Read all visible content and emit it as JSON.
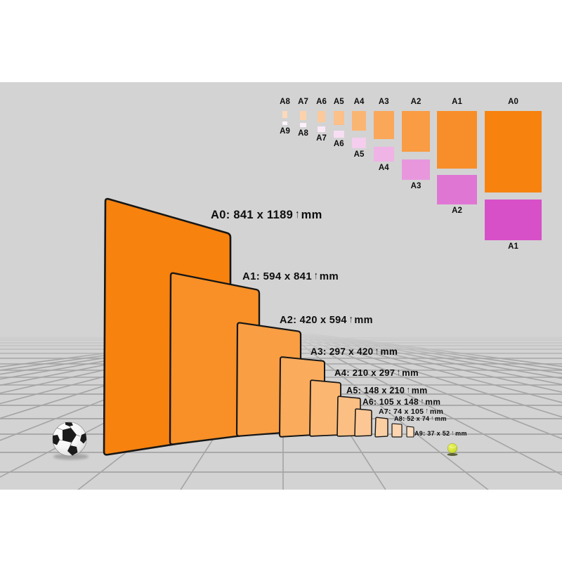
{
  "scene": {
    "frame_color": "#ffffff",
    "background_color": "#d3d3d3",
    "grid_color": "#a4a4a4",
    "text_color": "#0d0d0d"
  },
  "icons": {
    "up_arrow": "↑",
    "soccer_ball": "soccer-ball",
    "tennis_ball": "tennis-ball"
  },
  "main_sheets": [
    {
      "name": "A0",
      "label": "A0: 841 x 1189",
      "unit": "mm",
      "color": "#f7820e"
    },
    {
      "name": "A1",
      "label": "A1: 594 x 841",
      "unit": "mm",
      "color": "#f89027"
    },
    {
      "name": "A2",
      "label": "A2: 420 x 594",
      "unit": "mm",
      "color": "#f99e43"
    },
    {
      "name": "A3",
      "label": "A3: 297 x 420",
      "unit": "mm",
      "color": "#faab5b"
    },
    {
      "name": "A4",
      "label": "A4: 210 x 297",
      "unit": "mm",
      "color": "#fbb671"
    },
    {
      "name": "A5",
      "label": "A5: 148 x 210",
      "unit": "mm",
      "color": "#fbbf83"
    },
    {
      "name": "A6",
      "label": "A6: 105 x 148",
      "unit": "mm",
      "color": "#fcc794"
    },
    {
      "name": "A7",
      "label": "A7: 74 x 105",
      "unit": "mm",
      "color": "#fccfa3"
    },
    {
      "name": "A8",
      "label": "A8: 52 x 74",
      "unit": "mm",
      "color": "#fdd6b1"
    },
    {
      "name": "A9",
      "label": "A9: 37 x 52",
      "unit": "mm",
      "color": "#fdddbf"
    }
  ],
  "legend": {
    "columns": [
      {
        "portrait_label": "A8",
        "portrait_color": "#fddaba",
        "landscape_label": "A9",
        "landscape_color": "#fdf5fb"
      },
      {
        "portrait_label": "A7",
        "portrait_color": "#fdd2ab",
        "landscape_label": "A8",
        "landscape_color": "#fcf0fa"
      },
      {
        "portrait_label": "A6",
        "portrait_color": "#fcc99a",
        "landscape_label": "A7",
        "landscape_color": "#fae8f7"
      },
      {
        "portrait_label": "A5",
        "portrait_color": "#fcc089",
        "landscape_label": "A6",
        "landscape_color": "#f8def4"
      },
      {
        "portrait_label": "A4",
        "portrait_color": "#fbb573",
        "landscape_label": "A5",
        "landscape_color": "#f5cdee"
      },
      {
        "portrait_label": "A3",
        "portrait_color": "#faa75a",
        "landscape_label": "A4",
        "landscape_color": "#efb3e6"
      },
      {
        "portrait_label": "A2",
        "portrait_color": "#f99c43",
        "landscape_label": "A3",
        "landscape_color": "#e897dd"
      },
      {
        "portrait_label": "A1",
        "portrait_color": "#f88e29",
        "landscape_label": "A2",
        "landscape_color": "#e076d4"
      },
      {
        "portrait_label": "A0",
        "portrait_color": "#f7820e",
        "landscape_label": "A1",
        "landscape_color": "#d750c8"
      }
    ]
  }
}
